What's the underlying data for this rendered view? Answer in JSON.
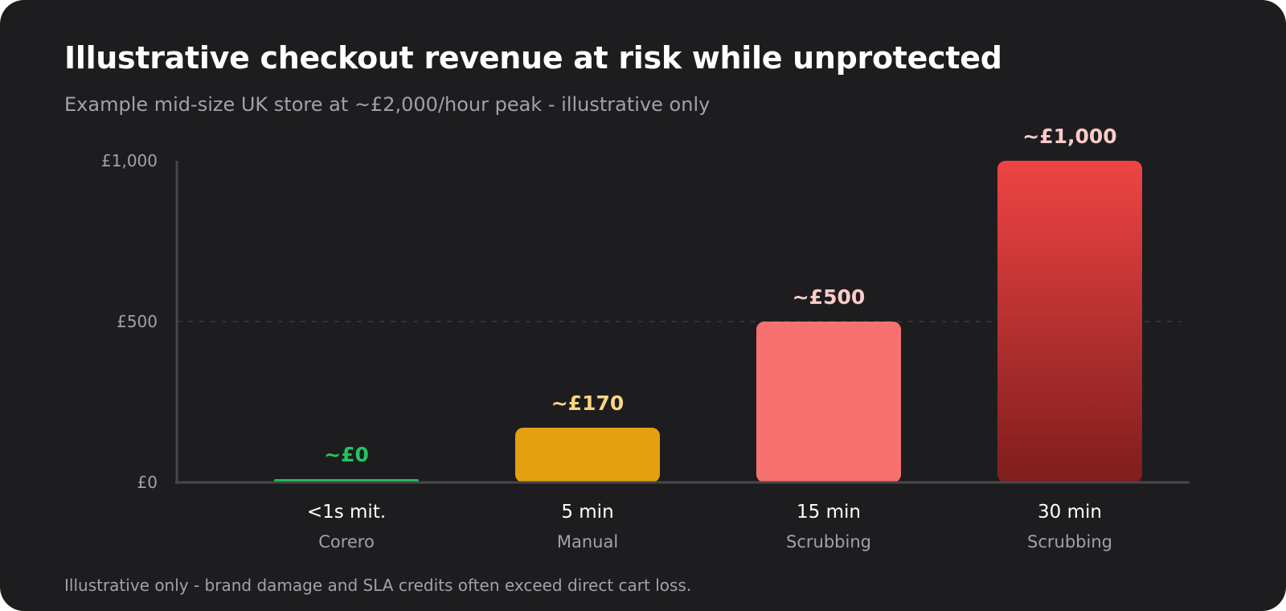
{
  "chart_data": {
    "type": "bar",
    "title": "Illustrative checkout revenue at risk while unprotected",
    "subtitle": "Example mid-size UK store at ~£2,000/hour peak - illustrative only",
    "footnote": "Illustrative only - brand damage and SLA credits often exceed direct cart loss.",
    "categories": [
      "<1s mit.",
      "5 min",
      "15 min",
      "30 min"
    ],
    "category_sublabels": [
      "Corero",
      "Manual",
      "Scrubbing",
      "Scrubbing"
    ],
    "values": [
      0,
      170,
      500,
      1000
    ],
    "value_labels": [
      "~£0",
      "~£170",
      "~£500",
      "~£1,000"
    ],
    "ylim": [
      0,
      1000
    ],
    "yticks": [
      0,
      500,
      1000
    ],
    "ytick_labels": [
      "£0",
      "£500",
      "£1,000"
    ],
    "grid": "dashed at £500",
    "colors": {
      "bars": [
        "#22c55e",
        "#e5a010",
        "#f87171",
        "#ef4444"
      ],
      "bar_gradient_end": "#7f1d1d",
      "value_labels": [
        "#22c55e",
        "#fcd581",
        "#fecaca",
        "#fecaca"
      ],
      "background": "#1d1d1f",
      "axis": "#48484a"
    }
  }
}
